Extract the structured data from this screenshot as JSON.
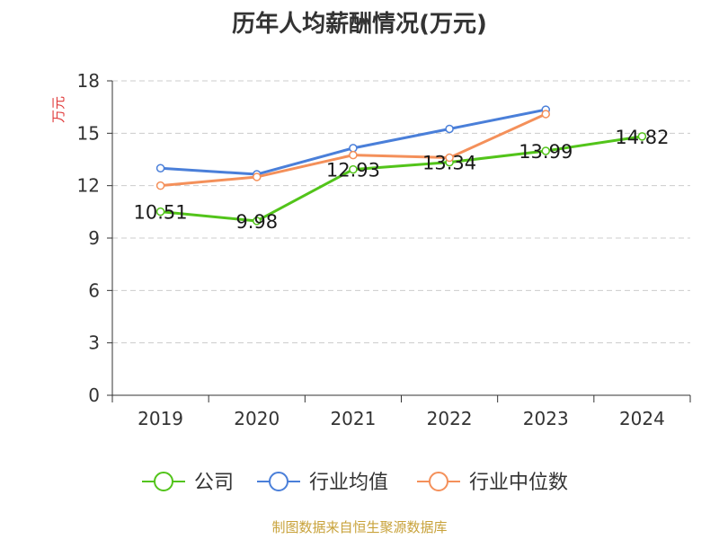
{
  "colors": {
    "company": "#52c41a",
    "industry_avg": "#4a7fd9",
    "industry_median": "#f4905a",
    "ylabel": "#e03a3a",
    "source": "#c8a23a",
    "text": "#333333",
    "grid": "#cccccc"
  },
  "chart_data": {
    "type": "line",
    "title": "历年人均薪酬情况(万元)",
    "ylabel": "万元",
    "xlabel": "",
    "categories": [
      "2019",
      "2020",
      "2021",
      "2022",
      "2023",
      "2024"
    ],
    "ylim": [
      0,
      18
    ],
    "yticks": [
      0,
      3,
      6,
      9,
      12,
      15,
      18
    ],
    "grid": true,
    "legend_position": "bottom",
    "series": [
      {
        "name": "公司",
        "color_key": "company",
        "values": [
          10.51,
          9.98,
          12.93,
          13.34,
          13.99,
          14.82
        ],
        "show_labels": true
      },
      {
        "name": "行业均值",
        "color_key": "industry_avg",
        "values": [
          13.0,
          12.65,
          14.15,
          15.25,
          16.35,
          null
        ],
        "show_labels": false
      },
      {
        "name": "行业中位数",
        "color_key": "industry_median",
        "values": [
          12.0,
          12.5,
          13.75,
          13.6,
          16.1,
          null
        ],
        "show_labels": false
      }
    ]
  },
  "footer": {
    "source": "制图数据来自恒生聚源数据库"
  }
}
